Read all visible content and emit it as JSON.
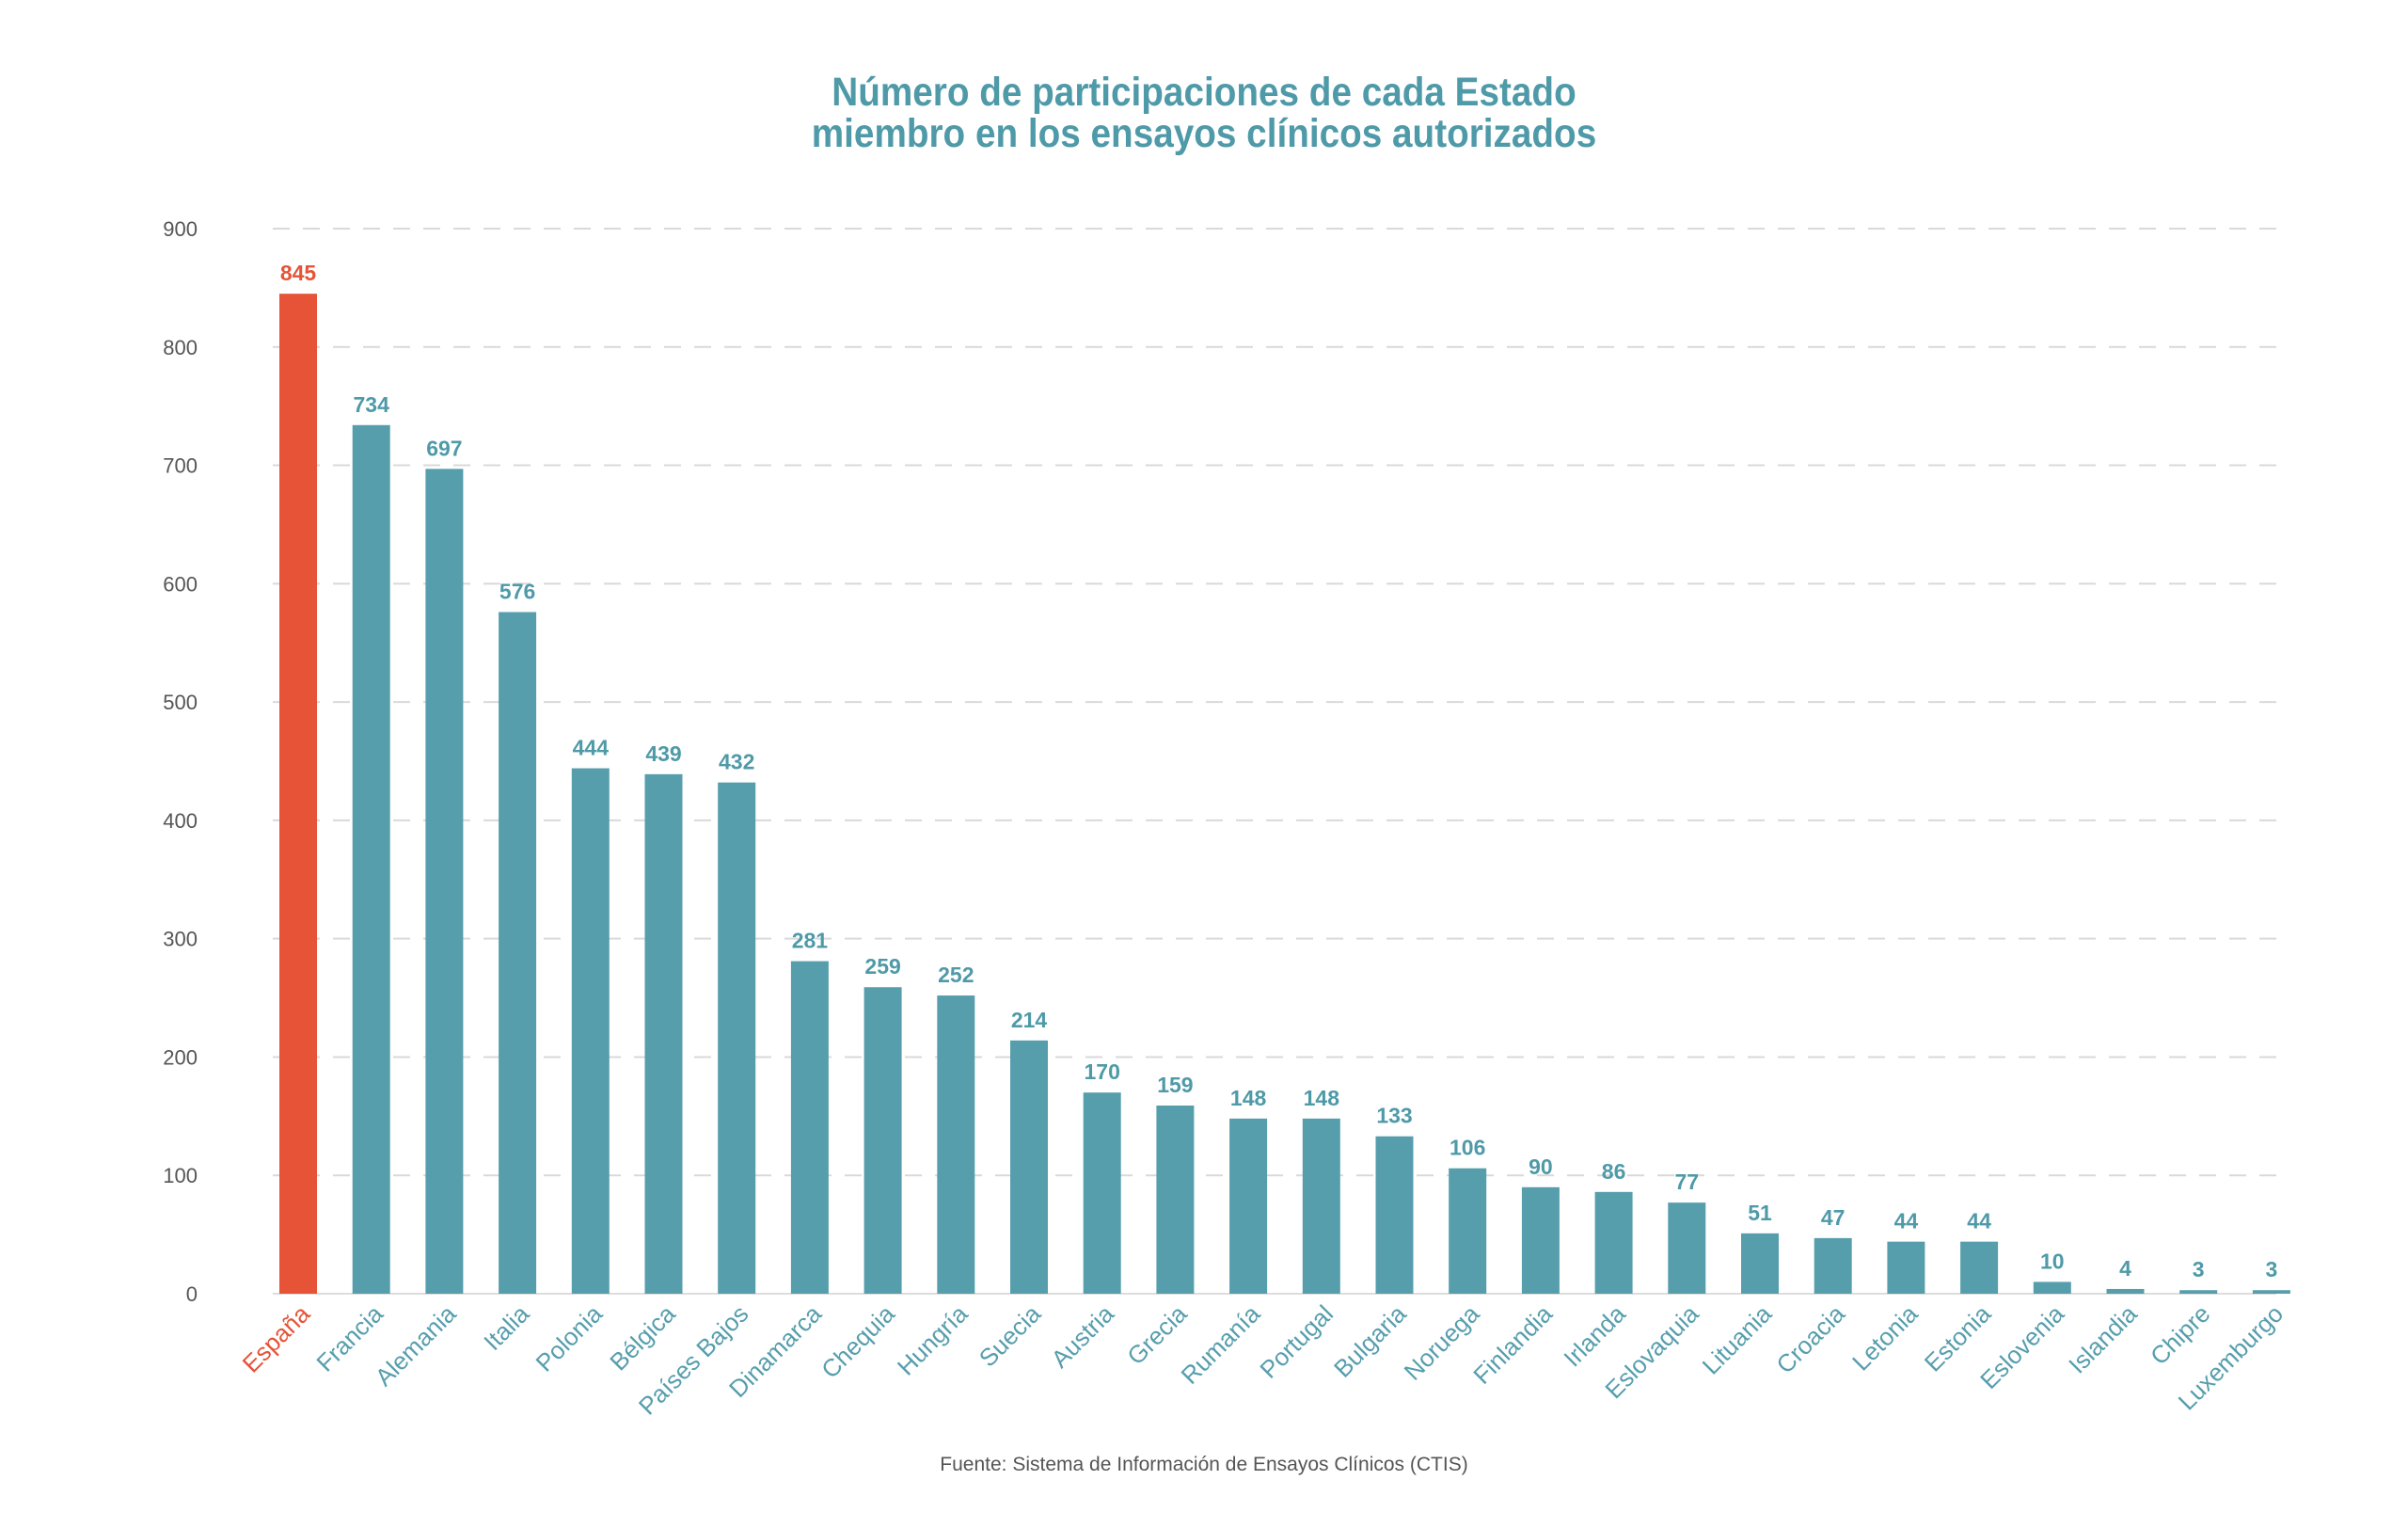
{
  "title_line1": "Número de participaciones de cada Estado",
  "title_line2": "miembro en los ensayos clínicos autorizados",
  "source": "Fuente: Sistema de Información de Ensayos Clínicos (CTIS)",
  "colors": {
    "title": "#4f9aa8",
    "bar": "#579ead",
    "highlight": "#e65337",
    "grid": "#d9d9d9",
    "axis_text": "#555555"
  },
  "chart_data": {
    "type": "bar",
    "categories": [
      "España",
      "Francia",
      "Alemania",
      "Italia",
      "Polonia",
      "Bélgica",
      "Países Bajos",
      "Dinamarca",
      "Chequia",
      "Hungría",
      "Suecia",
      "Austria",
      "Grecia",
      "Rumanía",
      "Portugal",
      "Bulgaria",
      "Noruega",
      "Finlandia",
      "Irlanda",
      "Eslovaquia",
      "Lituania",
      "Croacia",
      "Letonia",
      "Estonia",
      "Eslovenia",
      "Islandia",
      "Chipre",
      "Luxemburgo"
    ],
    "values": [
      845,
      734,
      697,
      576,
      444,
      439,
      432,
      281,
      259,
      252,
      214,
      170,
      159,
      148,
      148,
      133,
      106,
      90,
      86,
      77,
      51,
      47,
      44,
      44,
      10,
      4,
      3,
      3
    ],
    "highlight_category": "España",
    "ylim": [
      0,
      900
    ],
    "yticks": [
      0,
      100,
      200,
      300,
      400,
      500,
      600,
      700,
      800,
      900
    ],
    "grid": "dashed horizontal",
    "xlabel": "",
    "ylabel": "",
    "title": "Número de participaciones de cada Estado miembro en los ensayos clínicos autorizados"
  }
}
